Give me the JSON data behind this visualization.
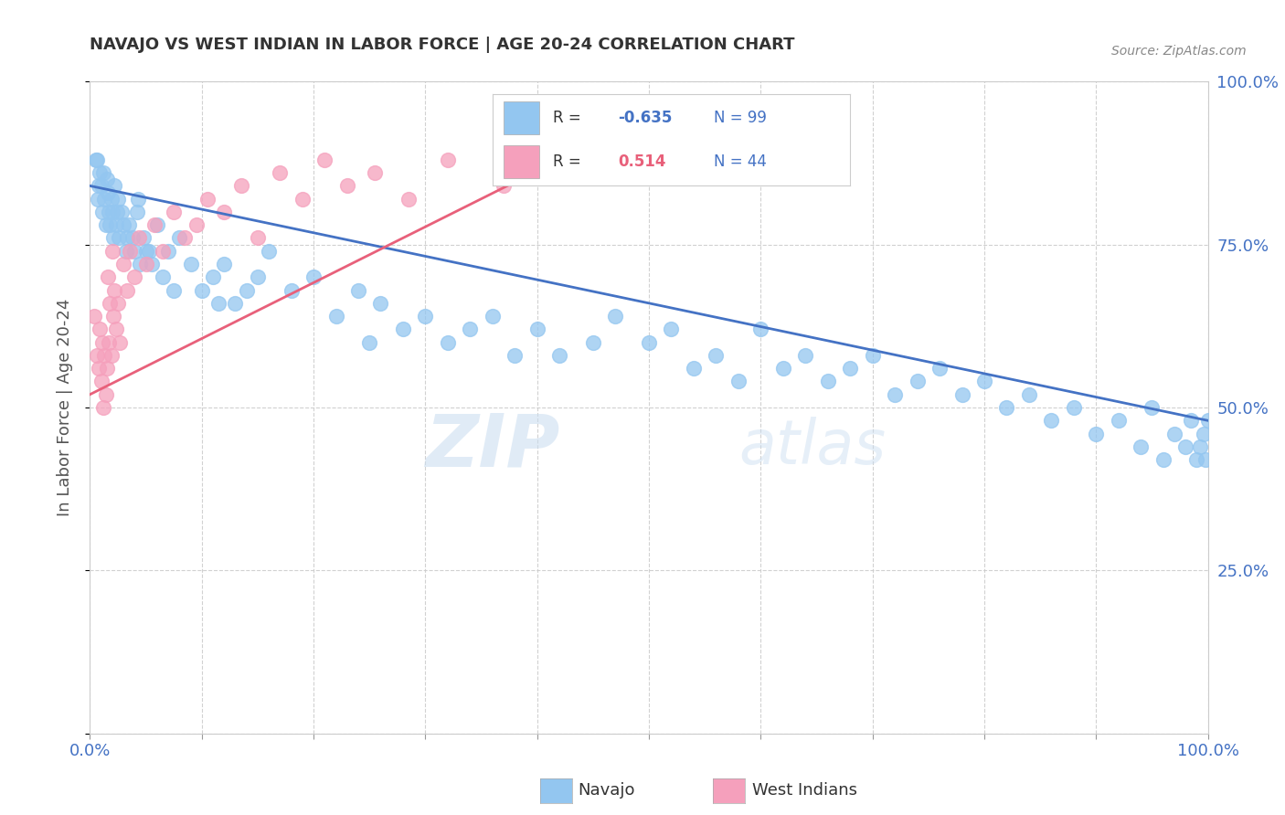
{
  "title": "NAVAJO VS WEST INDIAN IN LABOR FORCE | AGE 20-24 CORRELATION CHART",
  "source_text": "Source: ZipAtlas.com",
  "ylabel": "In Labor Force | Age 20-24",
  "xlim": [
    0.0,
    1.0
  ],
  "ylim": [
    0.0,
    1.0
  ],
  "navajo_R": "-0.635",
  "navajo_N": "99",
  "west_indian_R": "0.514",
  "west_indian_N": "44",
  "navajo_color": "#93C6F0",
  "west_indian_color": "#F5A0BC",
  "navajo_line_color": "#4472C4",
  "west_indian_line_color": "#E8607A",
  "background_color": "#FFFFFF",
  "watermark_zip": "ZIP",
  "watermark_atlas": "atlas",
  "legend_R_color": "#4472C4",
  "legend_N_color": "#4472C4",
  "tick_label_color": "#4472C4",
  "navajo_x": [
    0.005,
    0.007,
    0.009,
    0.01,
    0.011,
    0.012,
    0.013,
    0.014,
    0.015,
    0.016,
    0.017,
    0.018,
    0.019,
    0.02,
    0.021,
    0.022,
    0.023,
    0.025,
    0.026,
    0.028,
    0.03,
    0.032,
    0.035,
    0.038,
    0.04,
    0.042,
    0.045,
    0.048,
    0.05,
    0.055,
    0.06,
    0.065,
    0.07,
    0.075,
    0.08,
    0.09,
    0.1,
    0.11,
    0.12,
    0.13,
    0.14,
    0.15,
    0.16,
    0.18,
    0.2,
    0.22,
    0.24,
    0.26,
    0.28,
    0.3,
    0.32,
    0.34,
    0.36,
    0.38,
    0.4,
    0.42,
    0.45,
    0.47,
    0.5,
    0.52,
    0.54,
    0.56,
    0.58,
    0.6,
    0.62,
    0.64,
    0.66,
    0.68,
    0.7,
    0.72,
    0.74,
    0.76,
    0.78,
    0.8,
    0.82,
    0.84,
    0.86,
    0.88,
    0.9,
    0.92,
    0.94,
    0.95,
    0.96,
    0.97,
    0.98,
    0.985,
    0.99,
    0.993,
    0.996,
    0.998,
    1.0,
    0.006,
    0.008,
    0.024,
    0.033,
    0.043,
    0.053,
    0.115,
    0.25
  ],
  "navajo_y": [
    0.88,
    0.82,
    0.86,
    0.84,
    0.8,
    0.86,
    0.82,
    0.78,
    0.85,
    0.83,
    0.8,
    0.78,
    0.82,
    0.8,
    0.76,
    0.84,
    0.78,
    0.82,
    0.76,
    0.8,
    0.78,
    0.74,
    0.78,
    0.76,
    0.74,
    0.8,
    0.72,
    0.76,
    0.74,
    0.72,
    0.78,
    0.7,
    0.74,
    0.68,
    0.76,
    0.72,
    0.68,
    0.7,
    0.72,
    0.66,
    0.68,
    0.7,
    0.74,
    0.68,
    0.7,
    0.64,
    0.68,
    0.66,
    0.62,
    0.64,
    0.6,
    0.62,
    0.64,
    0.58,
    0.62,
    0.58,
    0.6,
    0.64,
    0.6,
    0.62,
    0.56,
    0.58,
    0.54,
    0.62,
    0.56,
    0.58,
    0.54,
    0.56,
    0.58,
    0.52,
    0.54,
    0.56,
    0.52,
    0.54,
    0.5,
    0.52,
    0.48,
    0.5,
    0.46,
    0.48,
    0.44,
    0.5,
    0.42,
    0.46,
    0.44,
    0.48,
    0.42,
    0.44,
    0.46,
    0.42,
    0.48,
    0.88,
    0.84,
    0.8,
    0.76,
    0.82,
    0.74,
    0.66,
    0.6
  ],
  "west_indian_x": [
    0.004,
    0.006,
    0.008,
    0.009,
    0.01,
    0.011,
    0.012,
    0.013,
    0.014,
    0.015,
    0.016,
    0.017,
    0.018,
    0.019,
    0.02,
    0.021,
    0.022,
    0.023,
    0.025,
    0.027,
    0.03,
    0.033,
    0.036,
    0.04,
    0.044,
    0.05,
    0.058,
    0.065,
    0.075,
    0.085,
    0.095,
    0.105,
    0.12,
    0.135,
    0.15,
    0.17,
    0.19,
    0.21,
    0.23,
    0.255,
    0.285,
    0.32,
    0.37,
    0.42
  ],
  "west_indian_y": [
    0.64,
    0.58,
    0.56,
    0.62,
    0.54,
    0.6,
    0.5,
    0.58,
    0.52,
    0.56,
    0.7,
    0.6,
    0.66,
    0.58,
    0.74,
    0.64,
    0.68,
    0.62,
    0.66,
    0.6,
    0.72,
    0.68,
    0.74,
    0.7,
    0.76,
    0.72,
    0.78,
    0.74,
    0.8,
    0.76,
    0.78,
    0.82,
    0.8,
    0.84,
    0.76,
    0.86,
    0.82,
    0.88,
    0.84,
    0.86,
    0.82,
    0.88,
    0.84,
    0.86
  ],
  "navajo_line_x0": 0.0,
  "navajo_line_y0": 0.84,
  "navajo_line_x1": 1.0,
  "navajo_line_y1": 0.48,
  "wi_line_x0": 0.0,
  "wi_line_y0": 0.52,
  "wi_line_x1": 0.42,
  "wi_line_y1": 0.88
}
